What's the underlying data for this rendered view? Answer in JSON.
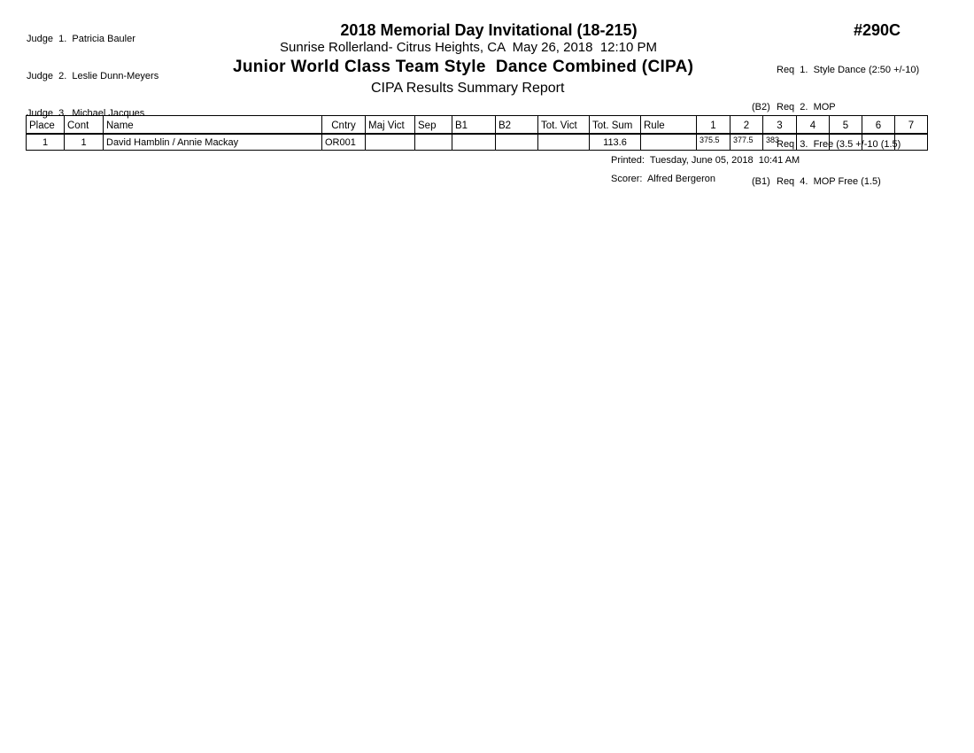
{
  "judges": [
    "Judge  1.  Patricia Bauler",
    "Judge  2.  Leslie Dunn-Meyers",
    "Judge  3.  Michael Jacques"
  ],
  "header": {
    "title": "2018 Memorial Day Invitational (18-215)",
    "venue": "Sunrise Rollerland- Citrus Heights, CA  May 26, 2018  12:10 PM",
    "event": "Junior World Class Team Style  Dance Combined (CIPA)",
    "subtitle": "CIPA Results Summary Report",
    "code": "#290C"
  },
  "requirements": [
    {
      "prefix": "",
      "text": "Req  1.  Style Dance (2:50 +/-10)"
    },
    {
      "prefix": "(B2)",
      "text": "Req  2.  MOP"
    },
    {
      "prefix": "",
      "text": "Req  3.  Free (3.5 +/-10 (1.5)"
    },
    {
      "prefix": "(B1)",
      "text": "Req  4.  MOP Free (1.5)"
    }
  ],
  "table": {
    "columns": [
      "Place",
      "Cont",
      "Name",
      "Cntry",
      "Maj Vict",
      "Sep",
      "B1",
      "B2",
      "Tot. Vict",
      "Tot. Sum",
      "Rule",
      "1",
      "2",
      "3",
      "4",
      "5",
      "6",
      "7"
    ],
    "rows": [
      [
        "1",
        "1",
        "David Hamblin / Annie Mackay",
        "OR001",
        "",
        "",
        "",
        "",
        "",
        "113.6",
        "",
        "375.5",
        "377.5",
        "383",
        "",
        "",
        "",
        ""
      ]
    ]
  },
  "footer": {
    "printed": "Printed:  Tuesday, June 05, 2018  10:41 AM",
    "scorer": "Scorer:  Alfred Bergeron"
  }
}
